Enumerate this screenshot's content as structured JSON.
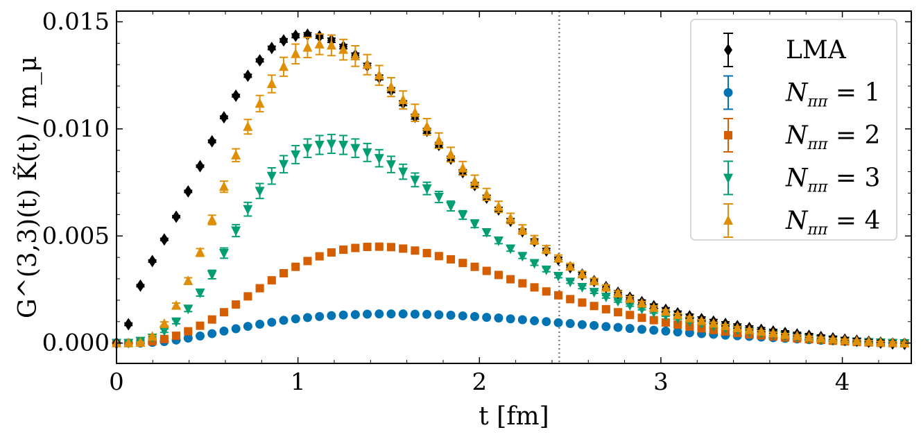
{
  "chart_data": {
    "type": "scatter",
    "title": "",
    "xlabel": "t [fm]",
    "ylabel": "G^(3,3)(t) K̃(t) / m_μ",
    "xlim": [
      0,
      4.38
    ],
    "ylim": [
      -0.00095,
      0.0155
    ],
    "xticks": [
      0,
      1,
      2,
      3,
      4
    ],
    "xtick_labels": [
      "0",
      "1",
      "2",
      "3",
      "4"
    ],
    "yticks": [
      0.0,
      0.005,
      0.01,
      0.015
    ],
    "ytick_labels": [
      "0.000",
      "0.005",
      "0.010",
      "0.015"
    ],
    "vline": 2.44,
    "legend_placement": "top-right",
    "series": [
      {
        "name": "LMA",
        "label_main": "LMA",
        "label_eq": "",
        "marker": "diamond",
        "color": "#000000",
        "x": [
          0.0,
          0.0658,
          0.1316,
          0.1974,
          0.2632,
          0.329,
          0.3948,
          0.4606,
          0.5264,
          0.5922,
          0.658,
          0.7238,
          0.7896,
          0.8554,
          0.9212,
          0.987,
          1.0528,
          1.1186,
          1.1844,
          1.2502,
          1.316,
          1.3818,
          1.4476,
          1.5134,
          1.5792,
          1.645,
          1.7108,
          1.7766,
          1.8424,
          1.9082,
          1.974,
          2.0398,
          2.1056,
          2.1714,
          2.2372,
          2.303,
          2.3688,
          2.4346,
          2.5004,
          2.5662,
          2.632,
          2.6978,
          2.7636,
          2.8294,
          2.8952,
          2.961,
          3.0268,
          3.0926,
          3.1584,
          3.2242,
          3.29,
          3.3558,
          3.4216,
          3.4874,
          3.5532,
          3.619,
          3.6848,
          3.7506,
          3.8164,
          3.8822,
          3.948,
          4.0138,
          4.0796,
          4.1454,
          4.2112,
          4.277,
          4.3428
        ],
        "y": [
          0.0,
          0.00088,
          0.00268,
          0.00383,
          0.00484,
          0.0059,
          0.00708,
          0.00826,
          0.00942,
          0.01054,
          0.01155,
          0.01248,
          0.0132,
          0.01378,
          0.01413,
          0.01435,
          0.0144,
          0.01432,
          0.01414,
          0.01384,
          0.01344,
          0.01295,
          0.0124,
          0.01181,
          0.0112,
          0.01057,
          0.00991,
          0.00925,
          0.00861,
          0.00798,
          0.00738,
          0.00679,
          0.00624,
          0.00571,
          0.00522,
          0.00476,
          0.00432,
          0.00391,
          0.00354,
          0.0032,
          0.00289,
          0.00261,
          0.00235,
          0.00212,
          0.00191,
          0.00172,
          0.00155,
          0.00139,
          0.00125,
          0.00112,
          0.001,
          0.00089,
          0.00079,
          0.0007,
          0.00062,
          0.00054,
          0.00047,
          0.0004,
          0.00034,
          0.00028,
          0.00022,
          0.00016,
          0.00011,
          6e-05,
          2e-05,
          -2e-05,
          -4e-05
        ],
        "err": [
          0.0,
          6e-05,
          5e-05,
          5e-05,
          5e-05,
          5e-05,
          5e-05,
          5e-05,
          6e-05,
          6e-05,
          6e-05,
          7e-05,
          7e-05,
          8e-05,
          8e-05,
          9e-05,
          9e-05,
          9e-05,
          0.0001,
          0.0001,
          0.0001,
          0.00011,
          0.00011,
          0.00011,
          0.00011,
          0.00011,
          0.00011,
          0.00011,
          0.00011,
          0.00011,
          0.00011,
          0.00011,
          0.0001,
          0.0001,
          0.0001,
          0.0001,
          0.0001,
          0.0001,
          0.0001,
          0.0001,
          0.0001,
          0.0001,
          0.0001,
          0.0001,
          0.0001,
          0.0001,
          0.0001,
          0.0001,
          0.0001,
          0.0001,
          0.0001,
          0.0001,
          0.0001,
          0.0001,
          0.0001,
          0.0001,
          0.0001,
          0.0001,
          0.0001,
          0.0001,
          0.0001,
          0.0001,
          0.0001,
          0.0001,
          0.0001,
          0.0001,
          0.0001
        ]
      },
      {
        "name": "Nππ = 1",
        "label_main": "N",
        "label_sub": "ππ",
        "label_eq": " = 1",
        "marker": "circle",
        "color": "#0173b2",
        "x": [
          0.0,
          0.0658,
          0.1316,
          0.1974,
          0.2632,
          0.329,
          0.3948,
          0.4606,
          0.5264,
          0.5922,
          0.658,
          0.7238,
          0.7896,
          0.8554,
          0.9212,
          0.987,
          1.0528,
          1.1186,
          1.1844,
          1.2502,
          1.316,
          1.3818,
          1.4476,
          1.5134,
          1.5792,
          1.645,
          1.7108,
          1.7766,
          1.8424,
          1.9082,
          1.974,
          2.0398,
          2.1056,
          2.1714,
          2.2372,
          2.303,
          2.3688,
          2.4346,
          2.5004,
          2.5662,
          2.632,
          2.6978,
          2.7636,
          2.8294,
          2.8952,
          2.961,
          3.0268,
          3.0926,
          3.1584,
          3.2242,
          3.29,
          3.3558,
          3.4216,
          3.4874,
          3.5532,
          3.619,
          3.6848,
          3.7506,
          3.8164,
          3.8822,
          3.948,
          4.0138,
          4.0796,
          4.1454,
          4.2112,
          4.277,
          4.3428
        ],
        "y": [
          0.0,
          0.0,
          0.0,
          3e-05,
          7e-05,
          0.00014,
          0.00023,
          0.00033,
          0.00044,
          0.00056,
          0.00067,
          0.00078,
          0.00088,
          0.00097,
          0.00106,
          0.00113,
          0.00119,
          0.00124,
          0.00128,
          0.00131,
          0.00133,
          0.00135,
          0.00136,
          0.00136,
          0.00136,
          0.00135,
          0.00134,
          0.00132,
          0.0013,
          0.00127,
          0.00124,
          0.0012,
          0.00117,
          0.00113,
          0.00109,
          0.00104,
          0.001,
          0.00095,
          0.00091,
          0.00086,
          0.00082,
          0.00077,
          0.00073,
          0.00068,
          0.00064,
          0.0006,
          0.00056,
          0.00052,
          0.00048,
          0.00044,
          0.00041,
          0.00037,
          0.00034,
          0.00031,
          0.00028,
          0.00025,
          0.00022,
          0.00019,
          0.00016,
          0.00013,
          0.00011,
          8e-05,
          6e-05,
          4e-05,
          2e-05,
          1e-05,
          0.0
        ],
        "err": [
          0.0,
          0.0,
          0.0,
          1e-05,
          1e-05,
          1e-05,
          1e-05,
          1e-05,
          1e-05,
          1e-05,
          1e-05,
          1e-05,
          1e-05,
          1e-05,
          1e-05,
          1e-05,
          1e-05,
          1e-05,
          1e-05,
          1e-05,
          1e-05,
          1e-05,
          1e-05,
          1e-05,
          1e-05,
          1e-05,
          1e-05,
          1e-05,
          1e-05,
          1e-05,
          1e-05,
          1e-05,
          1e-05,
          1e-05,
          1e-05,
          1e-05,
          1e-05,
          1e-05,
          1e-05,
          1e-05,
          1e-05,
          1e-05,
          1e-05,
          1e-05,
          1e-05,
          1e-05,
          1e-05,
          1e-05,
          1e-05,
          1e-05,
          1e-05,
          1e-05,
          1e-05,
          1e-05,
          1e-05,
          1e-05,
          1e-05,
          1e-05,
          1e-05,
          1e-05,
          1e-05,
          1e-05,
          1e-05,
          1e-05,
          1e-05,
          1e-05,
          1e-05
        ]
      },
      {
        "name": "Nππ = 2",
        "label_main": "N",
        "label_sub": "ππ",
        "label_eq": " = 2",
        "marker": "square",
        "color": "#d55e00",
        "x": [
          0.0,
          0.0658,
          0.1316,
          0.1974,
          0.2632,
          0.329,
          0.3948,
          0.4606,
          0.5264,
          0.5922,
          0.658,
          0.7238,
          0.7896,
          0.8554,
          0.9212,
          0.987,
          1.0528,
          1.1186,
          1.1844,
          1.2502,
          1.316,
          1.3818,
          1.4476,
          1.5134,
          1.5792,
          1.645,
          1.7108,
          1.7766,
          1.8424,
          1.9082,
          1.974,
          2.0398,
          2.1056,
          2.1714,
          2.2372,
          2.303,
          2.3688,
          2.4346,
          2.5004,
          2.5662,
          2.632,
          2.6978,
          2.7636,
          2.8294,
          2.8952,
          2.961,
          3.0268,
          3.0926,
          3.1584,
          3.2242,
          3.29,
          3.3558,
          3.4216,
          3.4874,
          3.5532,
          3.619,
          3.6848,
          3.7506,
          3.8164,
          3.8822,
          3.948,
          4.0138,
          4.0796,
          4.1454,
          4.2112,
          4.277,
          4.3428
        ],
        "y": [
          0.0,
          0.0,
          2e-05,
          8e-05,
          0.00019,
          0.00034,
          0.00055,
          0.00081,
          0.0011,
          0.00144,
          0.0018,
          0.00218,
          0.00256,
          0.00293,
          0.00326,
          0.00356,
          0.00383,
          0.00405,
          0.00423,
          0.00436,
          0.00444,
          0.00449,
          0.0045,
          0.00448,
          0.00441,
          0.00432,
          0.0042,
          0.00406,
          0.00391,
          0.00374,
          0.00356,
          0.00337,
          0.00318,
          0.00298,
          0.00279,
          0.0026,
          0.00241,
          0.00223,
          0.00205,
          0.00189,
          0.00173,
          0.00158,
          0.00144,
          0.00131,
          0.00118,
          0.00107,
          0.00096,
          0.00086,
          0.00077,
          0.00069,
          0.00061,
          0.00054,
          0.00047,
          0.00041,
          0.00036,
          0.00031,
          0.00026,
          0.00022,
          0.00018,
          0.00015,
          0.00011,
          8e-05,
          5e-05,
          3e-05,
          1e-05,
          0.0,
          -1e-05
        ],
        "err": [
          0.0,
          0.0,
          1e-05,
          2e-05,
          2e-05,
          3e-05,
          3e-05,
          4e-05,
          4e-05,
          5e-05,
          5e-05,
          5e-05,
          6e-05,
          6e-05,
          6e-05,
          7e-05,
          7e-05,
          7e-05,
          7e-05,
          7e-05,
          7e-05,
          7e-05,
          7e-05,
          7e-05,
          7e-05,
          7e-05,
          7e-05,
          7e-05,
          7e-05,
          6e-05,
          6e-05,
          6e-05,
          6e-05,
          6e-05,
          6e-05,
          6e-05,
          5e-05,
          5e-05,
          5e-05,
          5e-05,
          5e-05,
          5e-05,
          5e-05,
          5e-05,
          5e-05,
          5e-05,
          5e-05,
          5e-05,
          5e-05,
          5e-05,
          5e-05,
          5e-05,
          5e-05,
          5e-05,
          5e-05,
          5e-05,
          5e-05,
          5e-05,
          5e-05,
          5e-05,
          5e-05,
          5e-05,
          5e-05,
          5e-05,
          5e-05,
          5e-05,
          5e-05
        ]
      },
      {
        "name": "Nππ = 3",
        "label_main": "N",
        "label_sub": "ππ",
        "label_eq": " = 3",
        "marker": "triangle-down",
        "color": "#029e73",
        "x": [
          0.0,
          0.0658,
          0.1316,
          0.1974,
          0.2632,
          0.329,
          0.3948,
          0.4606,
          0.5264,
          0.5922,
          0.658,
          0.7238,
          0.7896,
          0.8554,
          0.9212,
          0.987,
          1.0528,
          1.1186,
          1.1844,
          1.2502,
          1.316,
          1.3818,
          1.4476,
          1.5134,
          1.5792,
          1.645,
          1.7108,
          1.7766,
          1.8424,
          1.9082,
          1.974,
          2.0398,
          2.1056,
          2.1714,
          2.2372,
          2.303,
          2.3688,
          2.4346,
          2.5004,
          2.5662,
          2.632,
          2.6978,
          2.7636,
          2.8294,
          2.8952,
          2.961,
          3.0268,
          3.0926,
          3.1584,
          3.2242,
          3.29,
          3.3558,
          3.4216,
          3.4874,
          3.5532,
          3.619,
          3.6848,
          3.7506,
          3.8164,
          3.8822,
          3.948,
          4.0138,
          4.0796,
          4.1454,
          4.2112,
          4.277,
          4.3428
        ],
        "y": [
          0.0,
          0.0,
          0.0001,
          0.00025,
          0.00058,
          0.001,
          0.0016,
          0.00235,
          0.0032,
          0.0042,
          0.00525,
          0.00625,
          0.0071,
          0.0078,
          0.00835,
          0.0088,
          0.0091,
          0.00925,
          0.0093,
          0.00925,
          0.0091,
          0.0089,
          0.00863,
          0.00834,
          0.008,
          0.00762,
          0.00722,
          0.00682,
          0.0064,
          0.00598,
          0.00557,
          0.00517,
          0.00478,
          0.00441,
          0.00406,
          0.00373,
          0.00342,
          0.00313,
          0.00286,
          0.00261,
          0.00238,
          0.00216,
          0.00196,
          0.00177,
          0.0016,
          0.00144,
          0.00129,
          0.00115,
          0.00102,
          0.00091,
          0.0008,
          0.0007,
          0.00062,
          0.00054,
          0.00047,
          0.0004,
          0.00034,
          0.00028,
          0.00023,
          0.00018,
          0.00014,
          0.0001,
          7e-05,
          4e-05,
          2e-05,
          0.0,
          -1e-05
        ],
        "err": [
          0.0,
          0.0,
          3e-05,
          5e-05,
          8e-05,
          0.0001,
          0.00013,
          0.00016,
          0.0002,
          0.00024,
          0.00028,
          0.00032,
          0.00035,
          0.00038,
          0.0004,
          0.00042,
          0.00043,
          0.00044,
          0.00044,
          0.00044,
          0.00043,
          0.00042,
          0.0004,
          0.00038,
          0.00035,
          0.00032,
          0.00029,
          0.00026,
          0.00023,
          0.0002,
          0.00018,
          0.00016,
          0.00014,
          0.00012,
          0.00011,
          0.0001,
          9e-05,
          8e-05,
          7e-05,
          7e-05,
          6e-05,
          6e-05,
          5e-05,
          5e-05,
          5e-05,
          4e-05,
          4e-05,
          4e-05,
          4e-05,
          4e-05,
          4e-05,
          4e-05,
          4e-05,
          4e-05,
          4e-05,
          4e-05,
          4e-05,
          4e-05,
          4e-05,
          4e-05,
          4e-05,
          4e-05,
          4e-05,
          4e-05,
          4e-05,
          4e-05,
          4e-05
        ]
      },
      {
        "name": "Nππ = 4",
        "label_main": "N",
        "label_sub": "ππ",
        "label_eq": " = 4",
        "marker": "triangle-up",
        "color": "#de8f05",
        "x": [
          0.0,
          0.0658,
          0.1316,
          0.1974,
          0.2632,
          0.329,
          0.3948,
          0.4606,
          0.5264,
          0.5922,
          0.658,
          0.7238,
          0.7896,
          0.8554,
          0.9212,
          0.987,
          1.0528,
          1.1186,
          1.1844,
          1.2502,
          1.316,
          1.3818,
          1.4476,
          1.5134,
          1.5792,
          1.645,
          1.7108,
          1.7766,
          1.8424,
          1.9082,
          1.974,
          2.0398,
          2.1056,
          2.1714,
          2.2372,
          2.303,
          2.3688,
          2.4346,
          2.5004,
          2.5662,
          2.632,
          2.6978,
          2.7636,
          2.8294,
          2.8952,
          2.961,
          3.0268,
          3.0926,
          3.1584,
          3.2242,
          3.29,
          3.3558,
          3.4216,
          3.4874,
          3.5532,
          3.619,
          3.6848,
          3.7506,
          3.8164,
          3.8822,
          3.948,
          4.0138,
          4.0796,
          4.1454,
          4.2112,
          4.277,
          4.3428
        ],
        "y": [
          0.0,
          0.0,
          2e-05,
          0.0003,
          0.0009,
          0.00175,
          0.0029,
          0.00423,
          0.00575,
          0.0073,
          0.00877,
          0.0101,
          0.01118,
          0.0121,
          0.0129,
          0.0135,
          0.0138,
          0.01395,
          0.0139,
          0.0137,
          0.0134,
          0.013,
          0.0125,
          0.01195,
          0.01135,
          0.01075,
          0.0101,
          0.00945,
          0.0088,
          0.00816,
          0.00754,
          0.00694,
          0.00636,
          0.00582,
          0.0053,
          0.00482,
          0.00437,
          0.00395,
          0.00357,
          0.00321,
          0.00289,
          0.00259,
          0.00232,
          0.00207,
          0.00185,
          0.00165,
          0.00147,
          0.00131,
          0.00116,
          0.00103,
          0.00091,
          0.0008,
          0.0007,
          0.00061,
          0.00053,
          0.00046,
          0.00039,
          0.00033,
          0.00027,
          0.00022,
          0.00017,
          0.00013,
          9e-05,
          6e-05,
          3e-05,
          1e-05,
          -1e-05
        ],
        "err": [
          0.0,
          0.0,
          3e-05,
          6e-05,
          9e-05,
          0.00012,
          0.00015,
          0.00018,
          0.00022,
          0.00026,
          0.0003,
          0.00034,
          0.00038,
          0.00041,
          0.00044,
          0.00046,
          0.00047,
          0.00048,
          0.00048,
          0.00048,
          0.00048,
          0.00047,
          0.00046,
          0.00044,
          0.00042,
          0.0004,
          0.00038,
          0.00036,
          0.00034,
          0.00032,
          0.0003,
          0.00028,
          0.00026,
          0.00024,
          0.00022,
          0.0002,
          0.00018,
          0.00016,
          0.00015,
          0.00014,
          0.00013,
          0.00012,
          0.00011,
          0.0001,
          9e-05,
          8e-05,
          8e-05,
          7e-05,
          7e-05,
          6e-05,
          6e-05,
          6e-05,
          6e-05,
          5e-05,
          5e-05,
          5e-05,
          5e-05,
          5e-05,
          5e-05,
          5e-05,
          5e-05,
          5e-05,
          5e-05,
          5e-05,
          5e-05,
          5e-05,
          5e-05
        ]
      }
    ],
    "draw_order": [
      1,
      2,
      3,
      0,
      4
    ]
  }
}
